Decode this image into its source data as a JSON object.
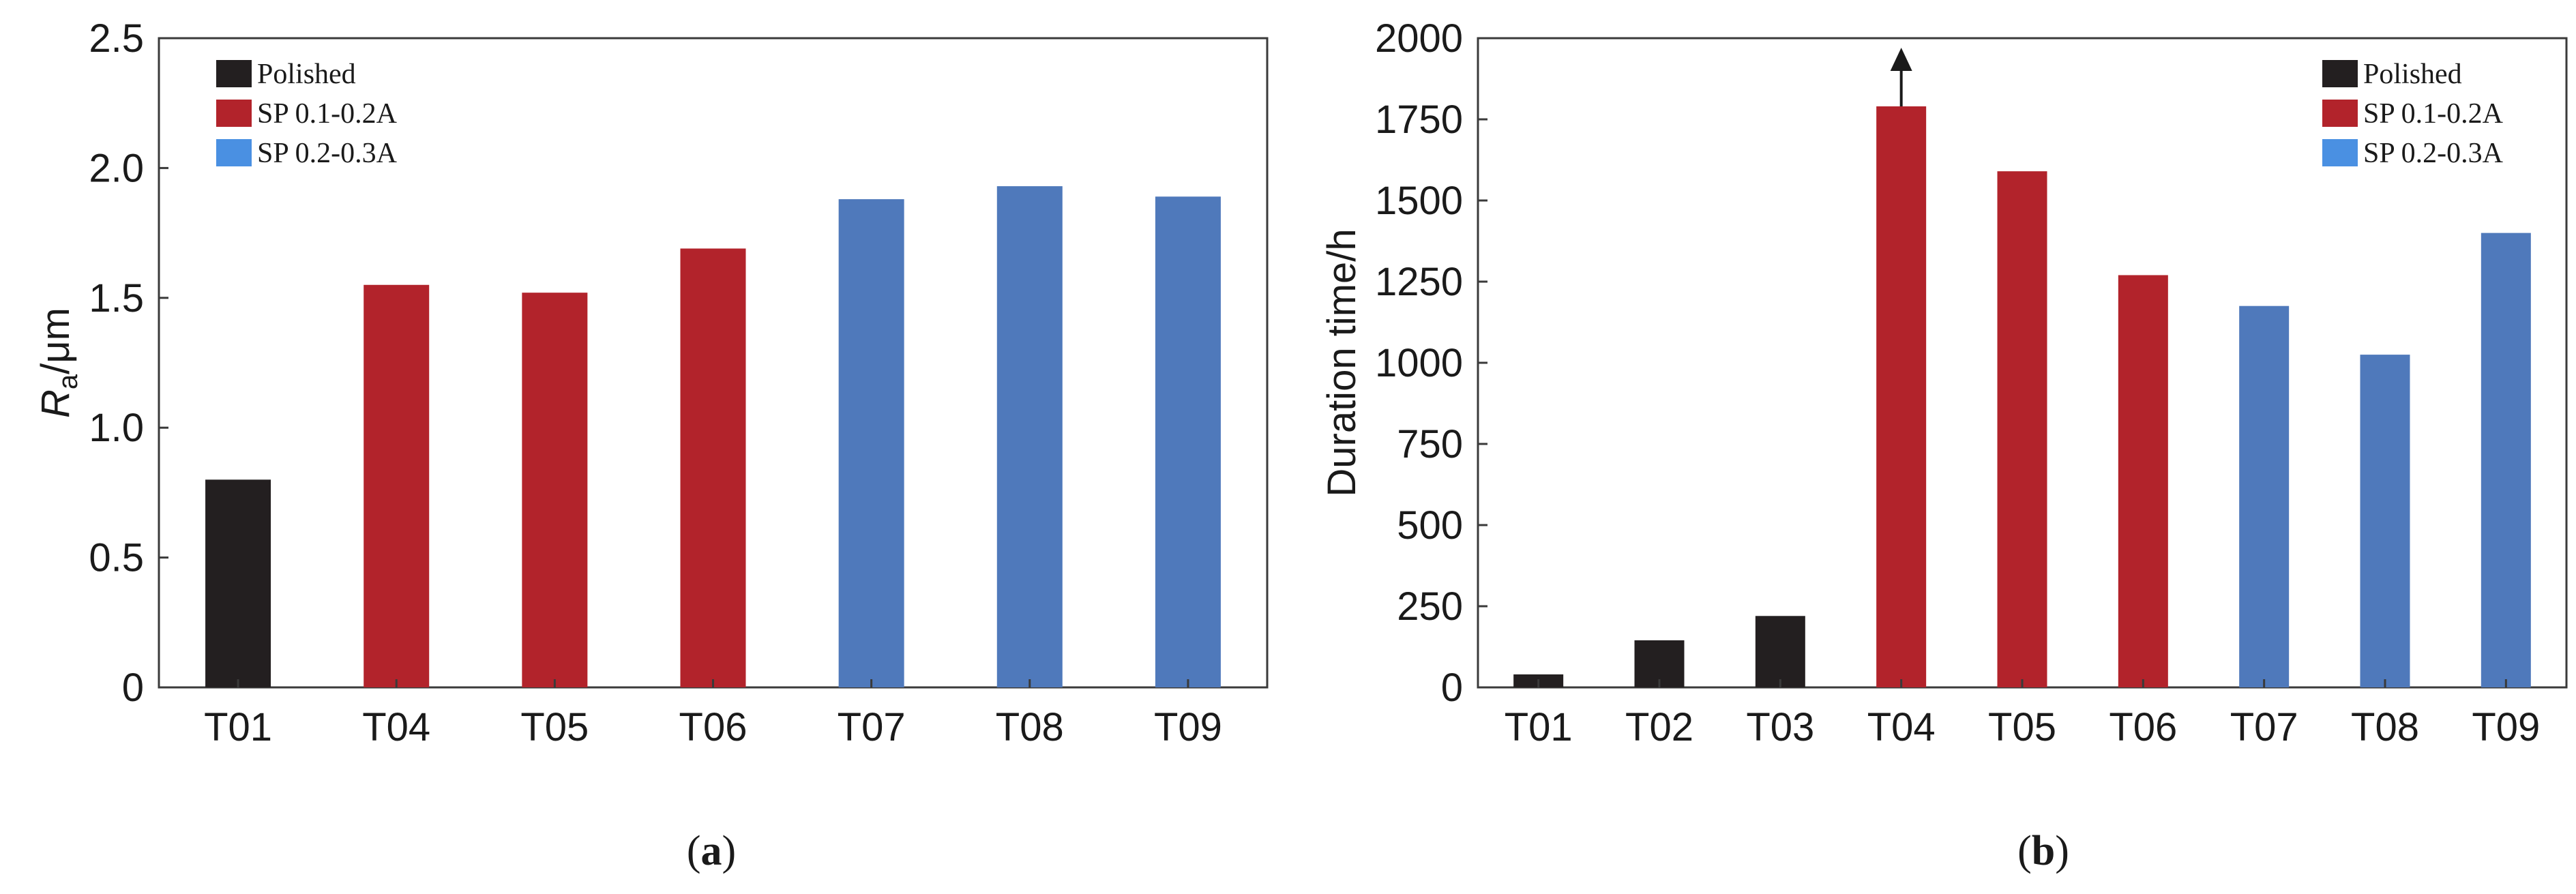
{
  "colors": {
    "Polished": "#231f20",
    "SP 0.1-0.2A": "#b2232b",
    "SP 0.2-0.3A": "#4f79bb",
    "legend_blue": "#4a90e2"
  },
  "chart_data": [
    {
      "type": "bar",
      "panel_label": "a",
      "title": "",
      "xlabel": "",
      "ylabel_main": "R",
      "ylabel_sub": "a",
      "ylabel_rest": "/μm",
      "ylim": [
        0,
        2.5
      ],
      "yticks": [
        "0",
        "0.5",
        "1.0",
        "1.5",
        "2.0",
        "2.5"
      ],
      "yticks_values": [
        0,
        0.5,
        1.0,
        1.5,
        2.0,
        2.5
      ],
      "categories": [
        "T01",
        "T04",
        "T05",
        "T06",
        "T07",
        "T08",
        "T09"
      ],
      "values": [
        0.8,
        1.55,
        1.52,
        1.69,
        1.88,
        1.93,
        1.89
      ],
      "groups": [
        "Polished",
        "SP 0.1-0.2A",
        "SP 0.1-0.2A",
        "SP 0.1-0.2A",
        "SP 0.2-0.3A",
        "SP 0.2-0.3A",
        "SP 0.2-0.3A"
      ],
      "legend": [
        "Polished",
        "SP 0.1-0.2A",
        "SP 0.2-0.3A"
      ],
      "legend_position": "top-left",
      "grid": false
    },
    {
      "type": "bar",
      "panel_label": "b",
      "title": "",
      "xlabel": "",
      "ylabel": "Duration time/h",
      "ylim": [
        0,
        2000
      ],
      "yticks": [
        "0",
        "250",
        "500",
        "750",
        "1000",
        "1250",
        "1500",
        "1750",
        "2000"
      ],
      "yticks_values": [
        0,
        250,
        500,
        750,
        1000,
        1250,
        1500,
        1750,
        2000
      ],
      "categories": [
        "T01",
        "T02",
        "T03",
        "T04",
        "T05",
        "T06",
        "T07",
        "T08",
        "T09"
      ],
      "values": [
        40,
        145,
        220,
        1790,
        1590,
        1270,
        1175,
        1025,
        1400
      ],
      "groups": [
        "Polished",
        "Polished",
        "Polished",
        "SP 0.1-0.2A",
        "SP 0.1-0.2A",
        "SP 0.1-0.2A",
        "SP 0.2-0.3A",
        "SP 0.2-0.3A",
        "SP 0.2-0.3A"
      ],
      "arrow_on": "T04",
      "legend": [
        "Polished",
        "SP 0.1-0.2A",
        "SP 0.2-0.3A"
      ],
      "legend_position": "top-right",
      "grid": false
    }
  ]
}
